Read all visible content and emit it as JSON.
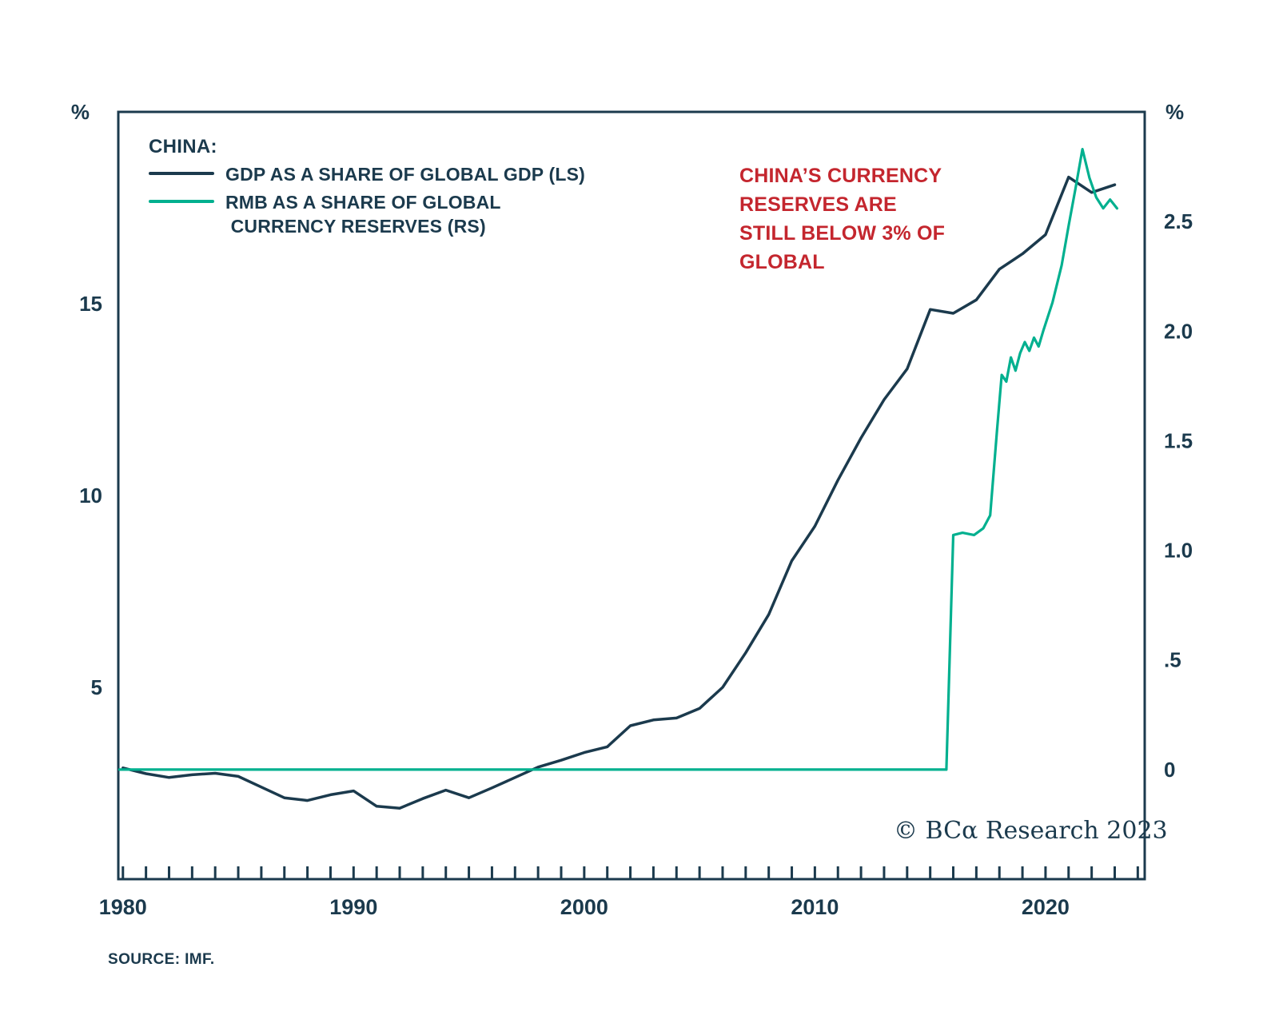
{
  "colors": {
    "navy": "#1b3a4d",
    "green": "#00b08f",
    "red": "#c4262e"
  },
  "legend": {
    "title": "CHINA:",
    "items": [
      {
        "label": "GDP AS A SHARE OF GLOBAL GDP (LS)",
        "series": "gdp-ls"
      },
      {
        "label": "RMB AS A SHARE OF GLOBAL\n CURRENCY RESERVES (RS)",
        "series": "rmb-rs"
      }
    ]
  },
  "annotation": {
    "text": "CHINA’S CURRENCY\nRESERVES ARE\nSTILL BELOW 3% OF\nGLOBAL"
  },
  "watermark": "© BCα Research 2023",
  "source": "SOURCE: IMF.",
  "chart_data": {
    "type": "line",
    "title": "CHINA: GDP AS A SHARE OF GLOBAL GDP (LS) vs RMB AS A SHARE OF GLOBAL CURRENCY RESERVES (RS)",
    "grid": false,
    "legend_position": "top-left-inside",
    "left_axis": {
      "unit": "%",
      "ticks": [
        5,
        10,
        15
      ],
      "tick_labels": [
        "5",
        "10",
        "15"
      ],
      "range": [
        0,
        20
      ]
    },
    "right_axis": {
      "unit": "%",
      "ticks": [
        0,
        0.5,
        1.0,
        1.5,
        2.0,
        2.5
      ],
      "tick_labels": [
        "0",
        ".5",
        "1.0",
        "1.5",
        "2.0",
        "2.5"
      ],
      "range": [
        -0.5,
        3.0
      ]
    },
    "x_axis": {
      "range": [
        1979.8,
        2024.3
      ],
      "major_ticks": [
        1980,
        1990,
        2000,
        2010,
        2020
      ],
      "major_labels": [
        "1980",
        "1990",
        "2000",
        "2010",
        "2020"
      ],
      "minor_tick_start": 1980,
      "minor_tick_end": 2024,
      "minor_tick_step": 1
    },
    "series": [
      {
        "id": "gdp-ls",
        "name": "GDP AS A SHARE OF GLOBAL GDP (LS)",
        "axis": "left",
        "color_key": "navy",
        "width": 3.5,
        "x": [
          1980,
          1981,
          1982,
          1983,
          1984,
          1985,
          1986,
          1987,
          1988,
          1989,
          1990,
          1991,
          1992,
          1993,
          1994,
          1995,
          1996,
          1997,
          1998,
          1999,
          2000,
          2001,
          2002,
          2003,
          2004,
          2005,
          2006,
          2007,
          2008,
          2009,
          2010,
          2011,
          2012,
          2013,
          2014,
          2015,
          2016,
          2017,
          2018,
          2019,
          2020,
          2021,
          2022,
          2023
        ],
        "values": [
          2.9,
          2.75,
          2.65,
          2.72,
          2.76,
          2.68,
          2.4,
          2.12,
          2.05,
          2.2,
          2.3,
          1.9,
          1.85,
          2.1,
          2.32,
          2.12,
          2.38,
          2.65,
          2.92,
          3.1,
          3.3,
          3.45,
          4.0,
          4.15,
          4.2,
          4.45,
          5.0,
          5.9,
          6.9,
          8.3,
          9.2,
          10.4,
          11.5,
          12.5,
          13.3,
          14.85,
          14.75,
          15.1,
          15.9,
          16.3,
          16.8,
          18.3,
          17.9,
          18.1
        ]
      },
      {
        "id": "rmb-rs",
        "name": "RMB AS A SHARE OF GLOBAL CURRENCY RESERVES (RS)",
        "axis": "right",
        "color_key": "green",
        "width": 3.2,
        "x": [
          1979.85,
          2015.7,
          2016.0,
          2016.4,
          2016.9,
          2017.3,
          2017.6,
          2017.9,
          2018.1,
          2018.3,
          2018.5,
          2018.7,
          2018.9,
          2019.1,
          2019.3,
          2019.5,
          2019.7,
          2019.9,
          2020.3,
          2020.7,
          2021.0,
          2021.3,
          2021.6,
          2021.9,
          2022.2,
          2022.5,
          2022.8,
          2023.1
        ],
        "values": [
          0,
          0,
          1.07,
          1.08,
          1.07,
          1.1,
          1.16,
          1.55,
          1.8,
          1.77,
          1.88,
          1.82,
          1.9,
          1.95,
          1.91,
          1.97,
          1.93,
          2.0,
          2.13,
          2.3,
          2.48,
          2.65,
          2.83,
          2.7,
          2.61,
          2.56,
          2.6,
          2.56
        ]
      }
    ]
  }
}
